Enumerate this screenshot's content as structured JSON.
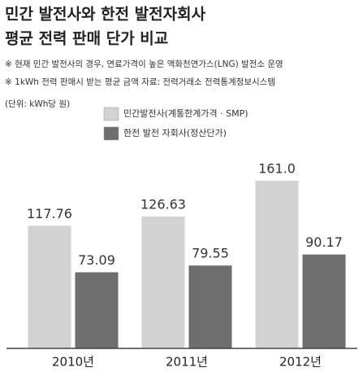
{
  "chart_data": {
    "type": "bar",
    "title": [
      "민간 발전사와 한전 발전자회사",
      "평균 전력 판매 단가 비교"
    ],
    "notes": [
      "※ 현재 민간 발전사의 경우, 연료가격이 높은 액화천연가스(LNG) 발전소 운영",
      "※ 1kWh 전력 판매시 받는 평균 금액  자료: 전력거래소 전력통계정보시스템"
    ],
    "unit": "(단위: kWh당 원)",
    "categories": [
      "2010년",
      "2011년",
      "2012년"
    ],
    "series": [
      {
        "name": "민간발전사(계통한계가격 · SMP)",
        "color": "#d2d2d2",
        "values": [
          117.76,
          126.63,
          161.0
        ],
        "value_labels": [
          "117.76",
          "126.63",
          "161.0"
        ]
      },
      {
        "name": "한전 발전 자회사(정산단가)",
        "color": "#6e6e6e",
        "values": [
          73.09,
          79.55,
          90.17
        ],
        "value_labels": [
          "73.09",
          "79.55",
          "90.17"
        ]
      }
    ]
  }
}
